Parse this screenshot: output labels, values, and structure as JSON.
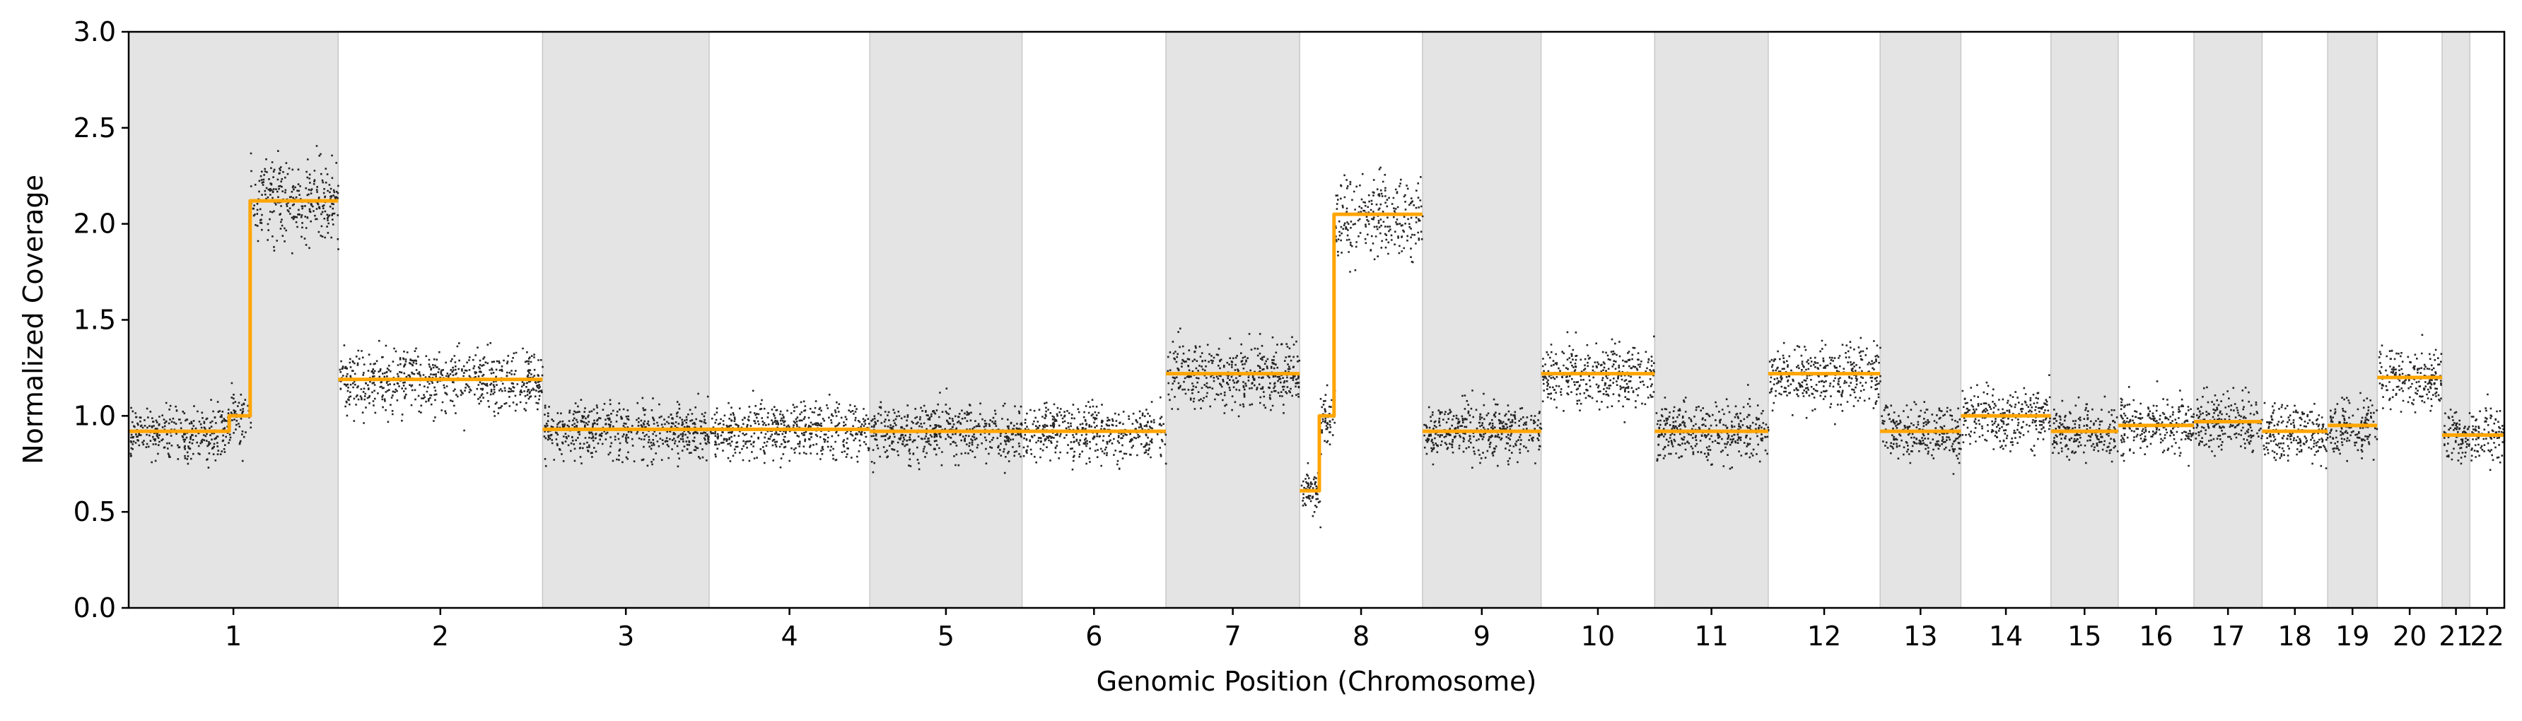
{
  "chart_data": {
    "type": "scatter",
    "title": "",
    "xlabel": "Genomic Position (Chromosome)",
    "ylabel": "Normalized Coverage",
    "ylim": [
      0.0,
      3.0
    ],
    "yticks": [
      "0.0",
      "0.5",
      "1.0",
      "1.5",
      "2.0",
      "2.5",
      "3.0"
    ],
    "grid": false,
    "legend": "none",
    "colors": {
      "points": "#000000",
      "segments": "#ffa500",
      "shaded_band": "#e4e4e4",
      "band_edge": "#c8c8c8"
    },
    "chromosomes": [
      {
        "label": "1",
        "length": 249,
        "shaded": true,
        "segments": [
          {
            "start": 0,
            "end": 0.48,
            "value": 0.92
          },
          {
            "start": 0.48,
            "end": 0.58,
            "value": 1.0
          },
          {
            "start": 0.58,
            "end": 1.0,
            "value": 2.12
          }
        ]
      },
      {
        "label": "2",
        "length": 243,
        "shaded": false,
        "segments": [
          {
            "start": 0,
            "end": 1.0,
            "value": 1.19
          }
        ]
      },
      {
        "label": "3",
        "length": 198,
        "shaded": true,
        "segments": [
          {
            "start": 0,
            "end": 1.0,
            "value": 0.93
          }
        ]
      },
      {
        "label": "4",
        "length": 191,
        "shaded": false,
        "segments": [
          {
            "start": 0,
            "end": 1.0,
            "value": 0.93
          }
        ]
      },
      {
        "label": "5",
        "length": 181,
        "shaded": true,
        "segments": [
          {
            "start": 0,
            "end": 1.0,
            "value": 0.92
          }
        ]
      },
      {
        "label": "6",
        "length": 171,
        "shaded": false,
        "segments": [
          {
            "start": 0,
            "end": 1.0,
            "value": 0.92
          }
        ]
      },
      {
        "label": "7",
        "length": 159,
        "shaded": true,
        "segments": [
          {
            "start": 0,
            "end": 1.0,
            "value": 1.22
          }
        ]
      },
      {
        "label": "8",
        "length": 146,
        "shaded": false,
        "segments": [
          {
            "start": 0,
            "end": 0.16,
            "value": 0.61
          },
          {
            "start": 0.16,
            "end": 0.28,
            "value": 1.0
          },
          {
            "start": 0.28,
            "end": 1.0,
            "value": 2.05
          }
        ]
      },
      {
        "label": "9",
        "length": 141,
        "shaded": true,
        "segments": [
          {
            "start": 0,
            "end": 1.0,
            "value": 0.92
          }
        ]
      },
      {
        "label": "10",
        "length": 135,
        "shaded": false,
        "segments": [
          {
            "start": 0,
            "end": 1.0,
            "value": 1.22
          }
        ]
      },
      {
        "label": "11",
        "length": 135,
        "shaded": true,
        "segments": [
          {
            "start": 0,
            "end": 1.0,
            "value": 0.92
          }
        ]
      },
      {
        "label": "12",
        "length": 133,
        "shaded": false,
        "segments": [
          {
            "start": 0,
            "end": 1.0,
            "value": 1.22
          }
        ]
      },
      {
        "label": "13",
        "length": 96,
        "shaded": true,
        "segments": [
          {
            "start": 0,
            "end": 1.0,
            "value": 0.92
          }
        ]
      },
      {
        "label": "14",
        "length": 107,
        "shaded": false,
        "segments": [
          {
            "start": 0,
            "end": 1.0,
            "value": 1.0
          }
        ]
      },
      {
        "label": "15",
        "length": 80,
        "shaded": true,
        "segments": [
          {
            "start": 0,
            "end": 1.0,
            "value": 0.92
          }
        ]
      },
      {
        "label": "16",
        "length": 90,
        "shaded": false,
        "segments": [
          {
            "start": 0,
            "end": 1.0,
            "value": 0.95
          }
        ]
      },
      {
        "label": "17",
        "length": 81,
        "shaded": true,
        "segments": [
          {
            "start": 0,
            "end": 1.0,
            "value": 0.97
          }
        ]
      },
      {
        "label": "18",
        "length": 78,
        "shaded": false,
        "segments": [
          {
            "start": 0,
            "end": 1.0,
            "value": 0.92
          }
        ]
      },
      {
        "label": "19",
        "length": 59,
        "shaded": true,
        "segments": [
          {
            "start": 0,
            "end": 1.0,
            "value": 0.95
          }
        ]
      },
      {
        "label": "20",
        "length": 77,
        "shaded": false,
        "segments": [
          {
            "start": 0,
            "end": 1.0,
            "value": 1.2
          }
        ]
      },
      {
        "label": "21",
        "length": 33,
        "shaded": true,
        "segments": [
          {
            "start": 0,
            "end": 1.0,
            "value": 0.9
          }
        ]
      },
      {
        "label": "22",
        "length": 41,
        "shaded": false,
        "segments": [
          {
            "start": 0,
            "end": 1.0,
            "value": 0.9
          }
        ]
      }
    ]
  }
}
